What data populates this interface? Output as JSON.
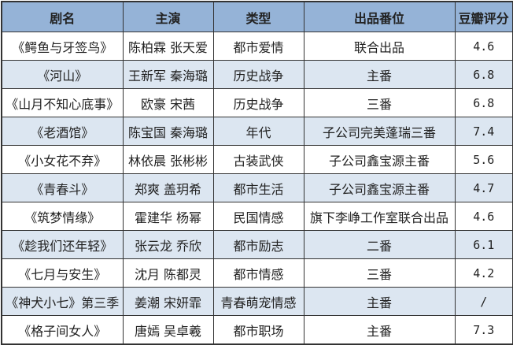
{
  "headers": [
    "剧名",
    "主演",
    "类型",
    "出品番位",
    "豆瓣评分"
  ],
  "rows": [
    [
      "《鳄鱼与牙签鸟》",
      "陈柏霖  张天爱",
      "都市爱情",
      "联合出品",
      "4.6"
    ],
    [
      "《河山》",
      "王新军  秦海璐",
      "历史战争",
      "主番",
      "6.8"
    ],
    [
      "《山月不知心底事》",
      "欧豪  宋茜",
      "历史战争",
      "三番",
      "6.8"
    ],
    [
      "《老酒馆》",
      "陈宝国  秦海璐",
      "年代",
      "子公司完美蓬瑞三番",
      "7.4"
    ],
    [
      "《小女花不弃》",
      "林依晨  张彬彬",
      "古装武侠",
      "子公司鑫宝源主番",
      "5.6"
    ],
    [
      "《青春斗》",
      "郑爽  盖玥希",
      "都市生活",
      "子公司鑫宝源主番",
      "4.7"
    ],
    [
      "《筑梦情缘》",
      "霍建华  杨幂",
      "民国情感",
      "旗下李峥工作室联合出品",
      "4.6"
    ],
    [
      "《趁我们还年轻》",
      "张云龙  乔欣",
      "都市励志",
      "二番",
      "6.1"
    ],
    [
      "《七月与安生》",
      "沈月  陈都灵",
      "都市情感",
      "三番",
      "4.2"
    ],
    [
      "《神犬小七》第三季",
      "姜潮  宋妍霏",
      "青春萌宠情感",
      "主番",
      "/"
    ],
    [
      "《格子间女人》",
      "唐嫣  吴卓羲",
      "都市职场",
      "主番",
      "7.3"
    ]
  ],
  "colors": {
    "header": "#95b3d7",
    "alt_row": "#dce6f1",
    "border": "#333333"
  }
}
